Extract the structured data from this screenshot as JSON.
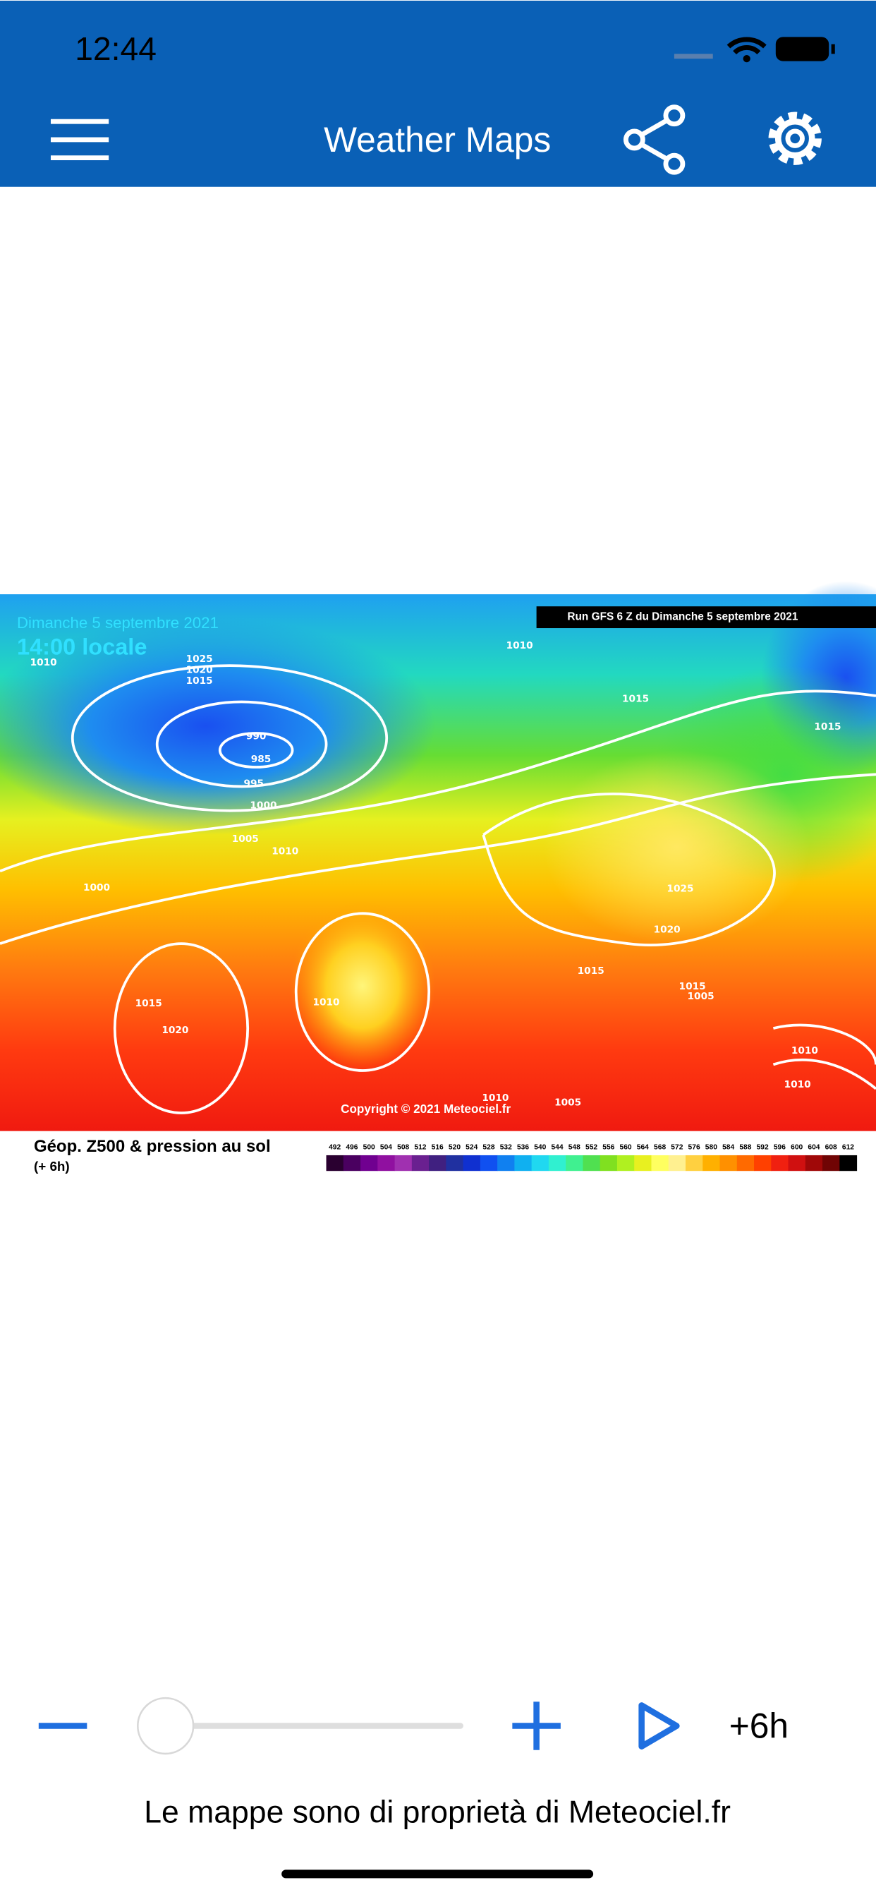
{
  "status_bar": {
    "time": "12:44"
  },
  "header": {
    "title": "Weather Maps"
  },
  "map": {
    "date": "Dimanche 5 septembre 2021",
    "time": "14:00 locale",
    "run": "Run GFS 6 Z du Dimanche 5 septembre 2021",
    "copyright": "Copyright © 2021 Meteociel.fr",
    "legend_title": "Géop. Z500 & pression au sol",
    "legend_subtitle": "(+ 6h)",
    "colorbar_labels": [
      "492",
      "496",
      "500",
      "504",
      "508",
      "512",
      "516",
      "520",
      "524",
      "528",
      "532",
      "536",
      "540",
      "544",
      "548",
      "552",
      "556",
      "560",
      "564",
      "568",
      "572",
      "576",
      "580",
      "584",
      "588",
      "592",
      "596",
      "600",
      "604",
      "608",
      "612"
    ],
    "isobar_labels": [
      "1010",
      "1025",
      "1020",
      "1015",
      "990",
      "985",
      "995",
      "1000",
      "1005",
      "1010",
      "1000",
      "1015",
      "1020",
      "1010",
      "1010",
      "1015",
      "1015",
      "1025",
      "1020",
      "1015",
      "1015",
      "1005",
      "1010",
      "1010",
      "1010",
      "1005"
    ]
  },
  "controls": {
    "step": "+6h"
  },
  "footer": {
    "caption": "Le mappe sono di proprietà di Meteociel.fr"
  }
}
